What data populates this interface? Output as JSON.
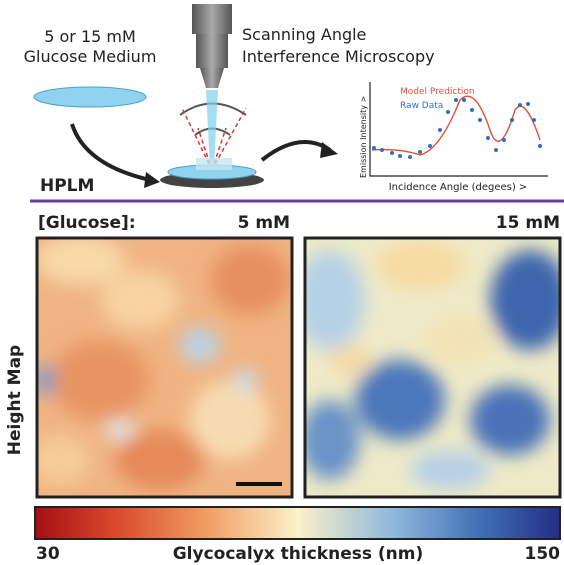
{
  "schematic": {
    "medium": [
      "5 or 15 mM",
      "Glucose Medium"
    ],
    "microscope": [
      "Scanning Angle",
      "Interference Microscopy"
    ],
    "inset": {
      "legend": [
        "Model Prediction",
        "Raw Data"
      ],
      "y_label": "Emission Intensity >",
      "x_label": "Incidence Angle (degees) >"
    },
    "method": "HPLM"
  },
  "panels": {
    "row_label": "[Glucose]:",
    "columns": [
      "5 mM",
      "15 mM"
    ],
    "side_label": "Height Map"
  },
  "colorbar": {
    "min": 30,
    "label": "Glycocalyx thickness (nm)",
    "max": 150
  }
}
